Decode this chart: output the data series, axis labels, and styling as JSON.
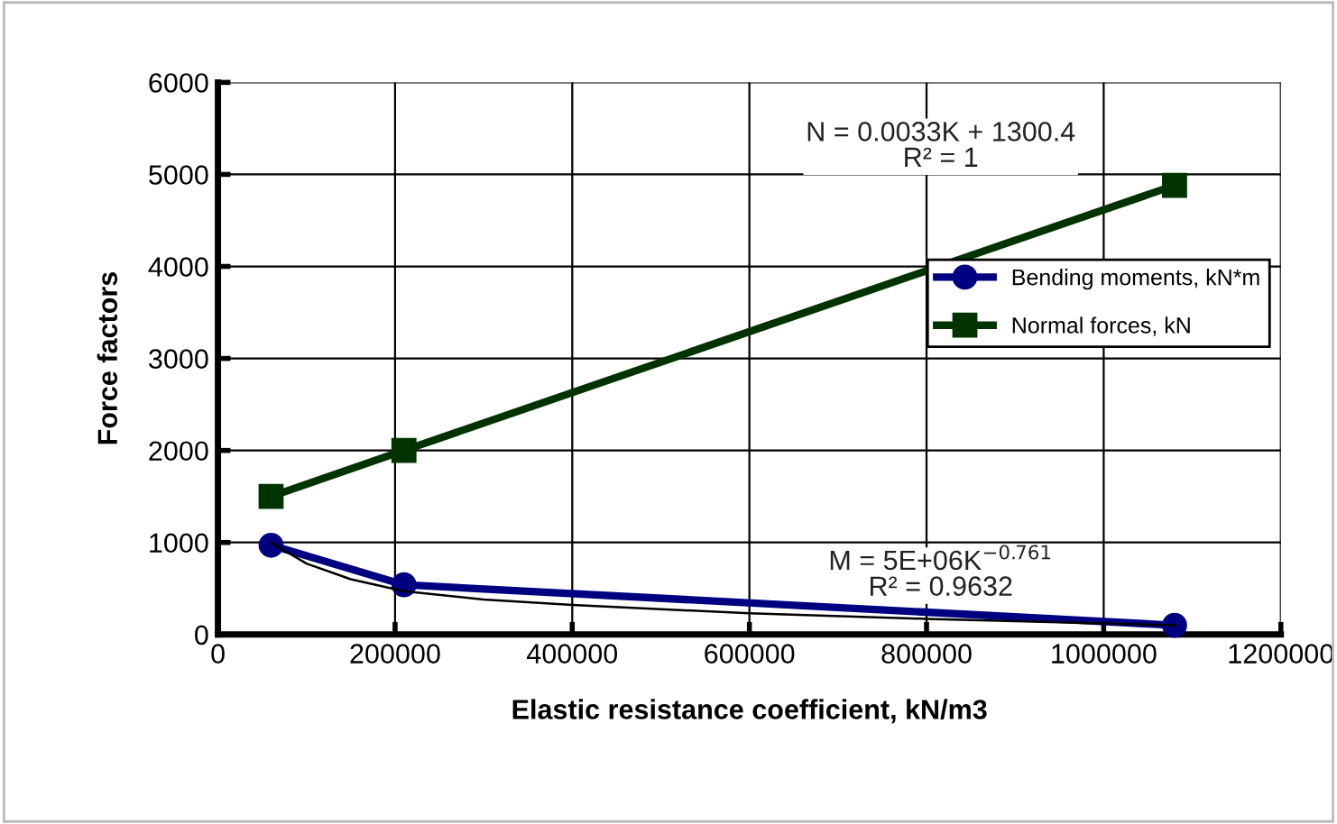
{
  "chart_data": {
    "type": "line",
    "xlabel": "Elastic resistance coefficient, kN/m3",
    "ylabel": "Force factors",
    "xlim": [
      0,
      1200000
    ],
    "xticks": [
      0,
      200000,
      400000,
      600000,
      800000,
      1000000,
      1200000
    ],
    "ylim": [
      0,
      6000
    ],
    "yticks": [
      0,
      1000,
      2000,
      3000,
      4000,
      5000,
      6000
    ],
    "grid": true,
    "legend": "right",
    "series": [
      {
        "name": "Bending moments, kN*m",
        "color": "#000080",
        "marker": "circle",
        "x": [
          60000,
          210000,
          1080000
        ],
        "values": [
          970,
          540,
          100
        ]
      },
      {
        "name": "Normal forces, kN",
        "color": "#003300",
        "marker": "square",
        "x": [
          60000,
          210000,
          1080000
        ],
        "values": [
          1500,
          2000,
          4880
        ]
      },
      {
        "color": "#000000",
        "marker": "none",
        "x": [
          60000,
          100000,
          150000,
          210000,
          300000,
          400000,
          600000,
          800000,
          1080000
        ],
        "values": [
          1000,
          770,
          600,
          470,
          380,
          320,
          230,
          170,
          100
        ]
      }
    ],
    "annotations": [
      "N = 0.0033K + 1300.4\nR² = 1",
      "M = 5E+06K$^{−0.761}$\nR² = 0.9632"
    ]
  }
}
